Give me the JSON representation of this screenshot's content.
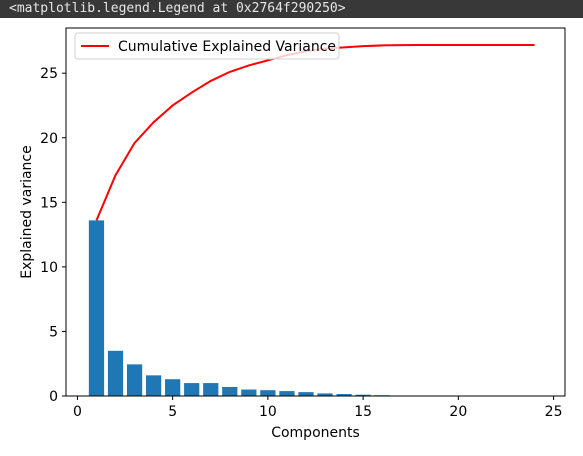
{
  "output_text": "<matplotlib.legend.Legend at 0x2764f290250>",
  "colors": {
    "bar": "#1f77b4",
    "line": "#ff0000",
    "background": "#383838"
  },
  "chart_data": {
    "type": "bar",
    "xlabel": "Components",
    "ylabel": "Explained variance",
    "xlim": [
      -0.6,
      25.6
    ],
    "ylim": [
      0,
      28.5
    ],
    "x_ticks": [
      0,
      5,
      10,
      15,
      20,
      25
    ],
    "y_ticks": [
      0,
      5,
      10,
      15,
      20,
      25
    ],
    "grid": false,
    "legend_position": "top-left",
    "bars": {
      "x": [
        1,
        2,
        3,
        4,
        5,
        6,
        7,
        8,
        9,
        10,
        11,
        12,
        13,
        14,
        15,
        16,
        17,
        18,
        19,
        20,
        21,
        22,
        23,
        24
      ],
      "values": [
        13.6,
        3.5,
        2.45,
        1.6,
        1.3,
        1.0,
        1.0,
        0.7,
        0.5,
        0.45,
        0.38,
        0.3,
        0.2,
        0.15,
        0.1,
        0.06,
        0.02,
        0.01,
        0.005,
        0.003,
        0.002,
        0.001,
        0.001,
        0.001
      ]
    },
    "series": [
      {
        "name": "Cumulative Explained Variance",
        "x": [
          1,
          2,
          3,
          4,
          5,
          6,
          7,
          8,
          9,
          10,
          11,
          12,
          13,
          14,
          15,
          16,
          17,
          18,
          19,
          20,
          21,
          22,
          23,
          24
        ],
        "values": [
          13.6,
          17.1,
          19.6,
          21.2,
          22.5,
          23.5,
          24.4,
          25.1,
          25.6,
          26.0,
          26.4,
          26.7,
          26.9,
          27.0,
          27.1,
          27.15,
          27.17,
          27.18,
          27.18,
          27.18,
          27.18,
          27.18,
          27.18,
          27.18
        ]
      }
    ]
  }
}
